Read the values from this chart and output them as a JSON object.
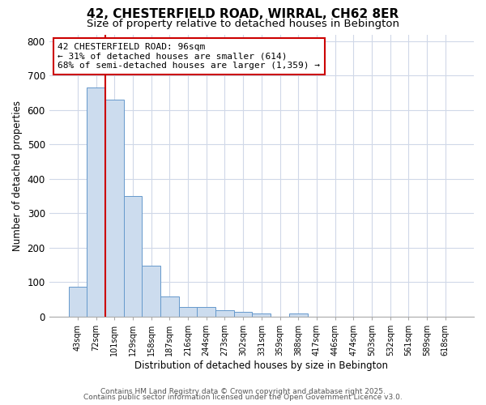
{
  "title1": "42, CHESTERFIELD ROAD, WIRRAL, CH62 8ER",
  "title2": "Size of property relative to detached houses in Bebington",
  "xlabel": "Distribution of detached houses by size in Bebington",
  "ylabel": "Number of detached properties",
  "bin_labels": [
    "43sqm",
    "72sqm",
    "101sqm",
    "129sqm",
    "158sqm",
    "187sqm",
    "216sqm",
    "244sqm",
    "273sqm",
    "302sqm",
    "331sqm",
    "359sqm",
    "388sqm",
    "417sqm",
    "446sqm",
    "474sqm",
    "503sqm",
    "532sqm",
    "561sqm",
    "589sqm",
    "618sqm"
  ],
  "bin_values": [
    85,
    665,
    630,
    350,
    148,
    57,
    27,
    27,
    17,
    12,
    8,
    0,
    8,
    0,
    0,
    0,
    0,
    0,
    0,
    0,
    0
  ],
  "bar_color": "#ccdcee",
  "bar_edge_color": "#6699cc",
  "red_line_color": "#cc0000",
  "annotation_text": "42 CHESTERFIELD ROAD: 96sqm\n← 31% of detached houses are smaller (614)\n68% of semi-detached houses are larger (1,359) →",
  "annotation_box_edge": "#cc0000",
  "ylim": [
    0,
    820
  ],
  "yticks": [
    0,
    100,
    200,
    300,
    400,
    500,
    600,
    700,
    800
  ],
  "bg_color": "#ffffff",
  "plot_bg_color": "#ffffff",
  "grid_color": "#d0d8e8",
  "footer1": "Contains HM Land Registry data © Crown copyright and database right 2025.",
  "footer2": "Contains public sector information licensed under the Open Government Licence v3.0."
}
